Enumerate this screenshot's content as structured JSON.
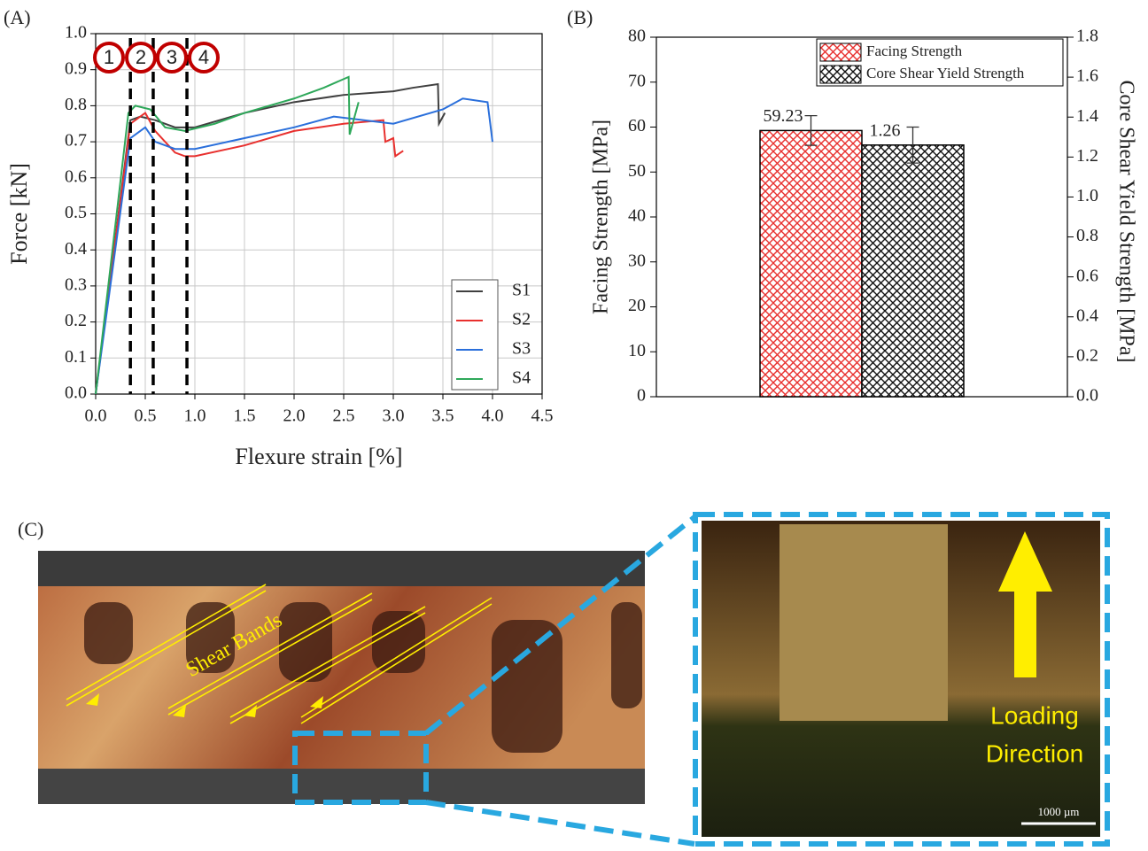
{
  "chart_data": [
    {
      "type": "line",
      "panel_label": "(A)",
      "x_label": "Flexure strain [%]",
      "y_label": "Force [kN]",
      "xlim": [
        0,
        4.5
      ],
      "ylim": [
        0,
        1.0
      ],
      "xticks": [
        {
          "value": 0,
          "label": "0.0"
        },
        0.5,
        {
          "value": 1,
          "label": "1.0"
        },
        1.5,
        {
          "value": 2,
          "label": "2.0"
        },
        2.5,
        {
          "value": 3,
          "label": "3.0"
        },
        3.5,
        {
          "value": 4,
          "label": "4.0"
        },
        4.5
      ],
      "yticks": [
        {
          "value": 0,
          "label": "0.0"
        },
        0.1,
        0.2,
        0.3,
        0.4,
        0.5,
        0.6,
        0.7,
        0.8,
        0.9,
        {
          "value": 1,
          "label": "1.0"
        }
      ],
      "grid": true,
      "legend": "bottom-right",
      "vlines": [
        0.35,
        0.58,
        0.92
      ],
      "annotations": [
        "1",
        "2",
        "3",
        "4"
      ],
      "series": [
        {
          "name": "S1",
          "color": "#404040",
          "x": [
            0,
            0.35,
            0.45,
            0.6,
            0.8,
            1.0,
            1.5,
            2.0,
            2.5,
            3.0,
            3.2,
            3.45,
            3.46,
            3.5,
            3.52
          ],
          "values": [
            0,
            0.76,
            0.77,
            0.76,
            0.74,
            0.74,
            0.78,
            0.81,
            0.83,
            0.84,
            0.85,
            0.86,
            0.75,
            0.77,
            0.78
          ]
        },
        {
          "name": "S2",
          "color": "#e8302e",
          "x": [
            0,
            0.35,
            0.5,
            0.6,
            0.8,
            0.9,
            1.0,
            1.5,
            2.0,
            2.5,
            2.9,
            2.92,
            3.0,
            3.02,
            3.1
          ],
          "values": [
            0,
            0.75,
            0.78,
            0.73,
            0.67,
            0.66,
            0.66,
            0.69,
            0.73,
            0.75,
            0.76,
            0.7,
            0.71,
            0.66,
            0.675
          ]
        },
        {
          "name": "S3",
          "color": "#2a6fdb",
          "x": [
            0,
            0.35,
            0.5,
            0.6,
            0.8,
            1.0,
            1.5,
            2.0,
            2.4,
            3.0,
            3.5,
            3.7,
            3.95,
            4.0
          ],
          "values": [
            0,
            0.71,
            0.74,
            0.7,
            0.68,
            0.68,
            0.71,
            0.74,
            0.77,
            0.75,
            0.79,
            0.82,
            0.81,
            0.7
          ]
        },
        {
          "name": "S4",
          "color": "#2ea85a",
          "x": [
            0,
            0.33,
            0.4,
            0.55,
            0.7,
            0.9,
            1.2,
            1.5,
            2.0,
            2.3,
            2.55,
            2.56,
            2.65
          ],
          "values": [
            0,
            0.78,
            0.8,
            0.79,
            0.74,
            0.73,
            0.75,
            0.78,
            0.82,
            0.85,
            0.88,
            0.72,
            0.81
          ]
        }
      ]
    },
    {
      "type": "bar",
      "panel_label": "(B)",
      "y_label": "Facing Strength [MPa]",
      "y2_label": "Core Shear Yield Strength [MPa]",
      "categories": [
        null
      ],
      "ylim": [
        0,
        80
      ],
      "yticks": [
        0,
        10,
        20,
        30,
        40,
        50,
        60,
        70,
        80
      ],
      "y2lim": [
        0,
        1.8
      ],
      "y2ticks": [
        {
          "value": 0,
          "label": "0.0"
        },
        0.2,
        0.4,
        0.6,
        0.8,
        {
          "value": 1,
          "label": "1.0"
        },
        1.2,
        1.4,
        1.6,
        1.8
      ],
      "legend": "top-right",
      "series": [
        {
          "name": "Facing Strength",
          "color": "#e8302e",
          "values": [
            59.23
          ],
          "errors": [
            3.3
          ]
        },
        {
          "name": "Core Shear Yield Strength",
          "color": "#111111",
          "axis": "y2",
          "values": [
            1.26
          ],
          "errors": [
            0.09
          ]
        }
      ]
    }
  ],
  "panel_c": {
    "panel_label": "(C)",
    "left_label": "Shear Bands",
    "right_label": [
      "Loading",
      "Direction"
    ],
    "scale_bar": "1000 µm"
  }
}
